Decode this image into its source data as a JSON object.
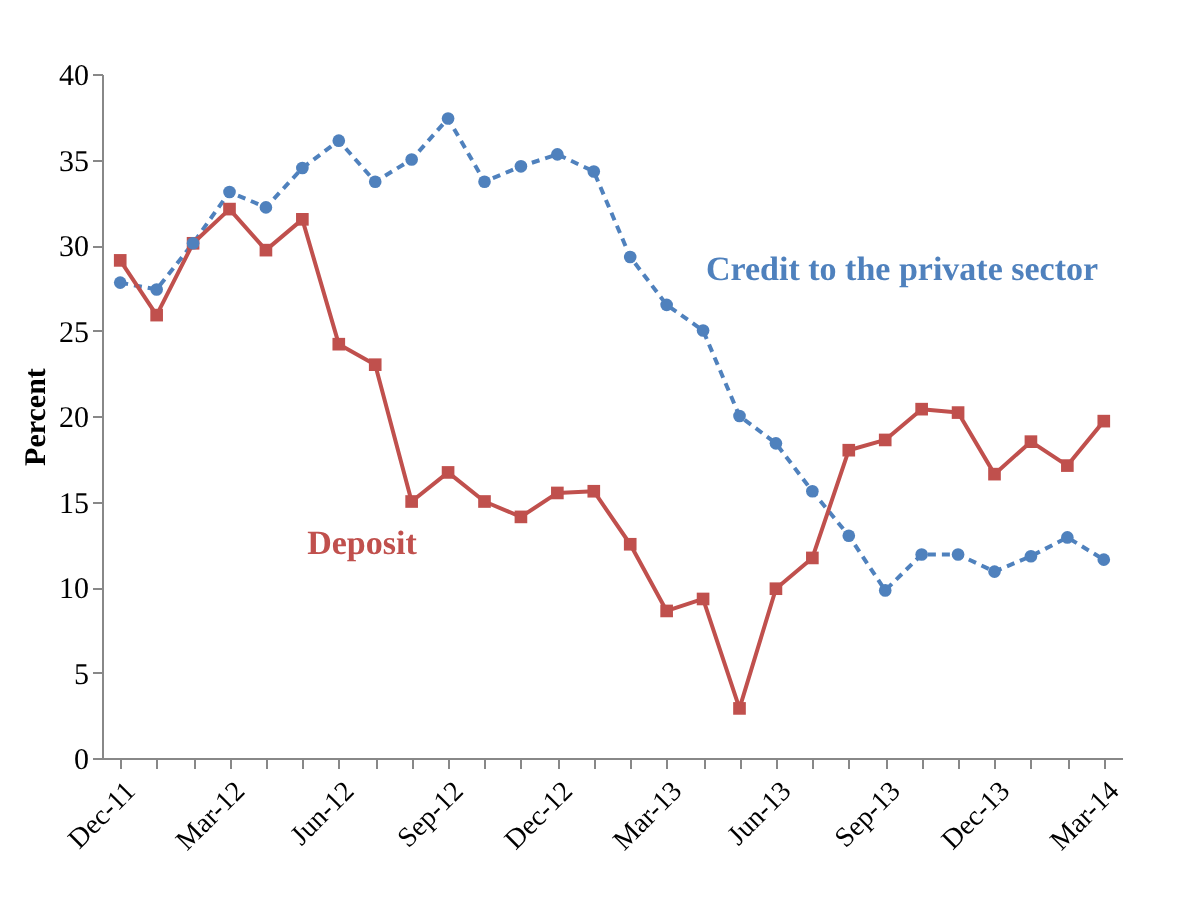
{
  "chart_data": {
    "type": "line",
    "ylabel": "Percent",
    "categories": [
      "Dec-11",
      null,
      null,
      "Mar-12",
      null,
      null,
      "Jun-12",
      null,
      null,
      "Sep-12",
      null,
      null,
      "Dec-12",
      null,
      null,
      "Mar-13",
      null,
      null,
      "Jun-13",
      null,
      null,
      "Sep-13",
      null,
      null,
      "Dec-13",
      null,
      null,
      "Mar-14"
    ],
    "ylim": [
      0,
      40
    ],
    "yticks": [
      0,
      5,
      10,
      15,
      20,
      25,
      30,
      35,
      40
    ],
    "grid": false,
    "legend": false,
    "series": [
      {
        "name": "Credit to the private sector",
        "color": "#4f81bd",
        "marker": "circle",
        "line_style": "dashed",
        "values": [
          27.8,
          27.4,
          30.1,
          33.1,
          32.2,
          34.5,
          36.1,
          33.7,
          35,
          37.4,
          33.7,
          34.6,
          35.3,
          34.3,
          29.3,
          26.5,
          25,
          20,
          18.4,
          15.6,
          13,
          9.8,
          11.9,
          11.9,
          10.9,
          11.8,
          12.9,
          11.6
        ]
      },
      {
        "name": "Deposit",
        "color": "#c0504d",
        "marker": "square",
        "line_style": "solid",
        "values": [
          29.1,
          25.9,
          30.1,
          32.1,
          29.7,
          31.5,
          24.2,
          23,
          15,
          16.7,
          15,
          14.1,
          15.5,
          15.6,
          12.5,
          8.6,
          9.3,
          2.9,
          9.9,
          11.7,
          18,
          18.6,
          20.4,
          20.2,
          16.6,
          18.5,
          17.1,
          19.7
        ]
      }
    ]
  }
}
